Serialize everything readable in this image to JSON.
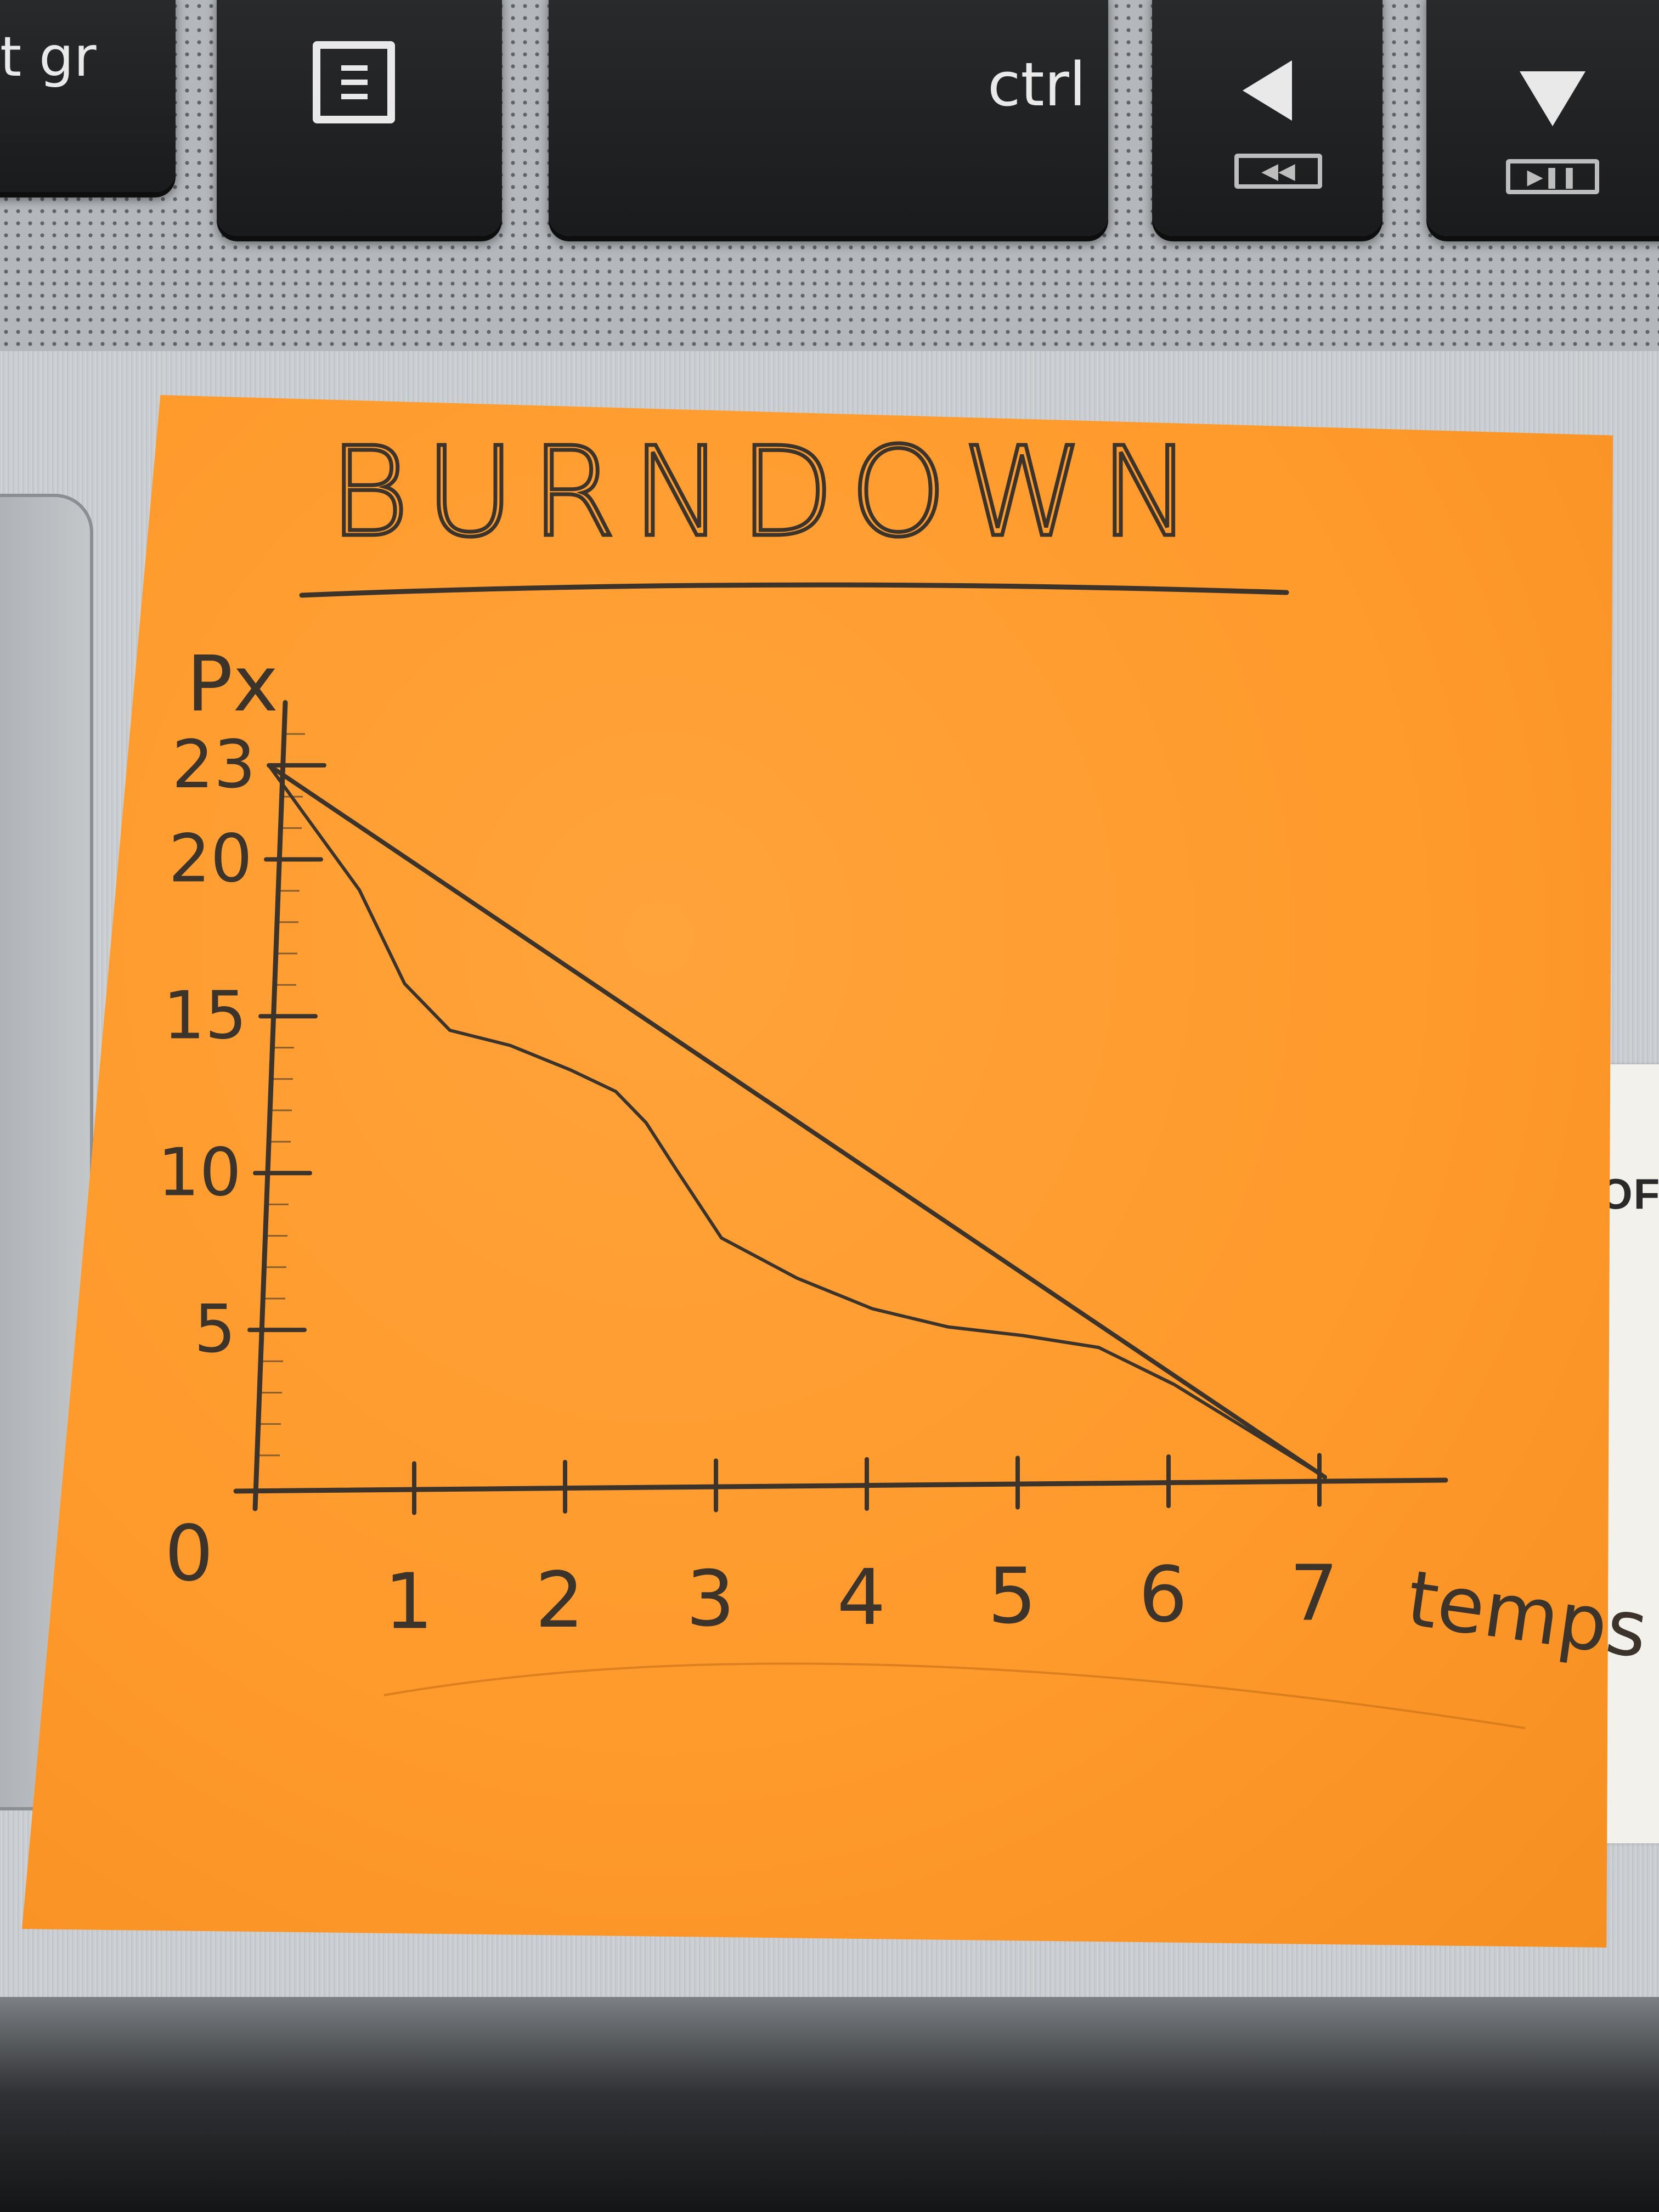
{
  "keyboard": {
    "key_altgr_label": "t gr",
    "key_ctrl_label": "ctrl"
  },
  "side_label": {
    "text": "I OF"
  },
  "chart_data": {
    "type": "line",
    "title": "BURNDOWN",
    "xlabel": "temps",
    "ylabel": "Px",
    "origin_label": "0",
    "x_ticks": [
      "1",
      "2",
      "3",
      "4",
      "5",
      "6",
      "7"
    ],
    "y_ticks": [
      "5",
      "10",
      "15",
      "20",
      "23"
    ],
    "xlim": [
      0,
      7.8
    ],
    "ylim": [
      0,
      25
    ],
    "grid": false,
    "series": [
      {
        "style": "straight",
        "x": [
          0,
          7
        ],
        "y": [
          23,
          0
        ]
      },
      {
        "style": "wavy",
        "x": [
          0,
          0.3,
          0.6,
          0.9,
          1.2,
          1.6,
          2.0,
          2.3,
          2.5,
          2.7,
          3.0,
          3.5,
          4.0,
          4.5,
          5.0,
          5.5,
          6.0,
          6.5,
          7
        ],
        "y": [
          23,
          21,
          19,
          16,
          14.5,
          14,
          13.2,
          12.5,
          11.5,
          10,
          7.8,
          6.5,
          5.5,
          4.9,
          4.6,
          4.2,
          3.0,
          1.5,
          0
        ]
      }
    ],
    "colors": {
      "paper": "#ff9a2c",
      "pencil": "#3c342b"
    }
  }
}
